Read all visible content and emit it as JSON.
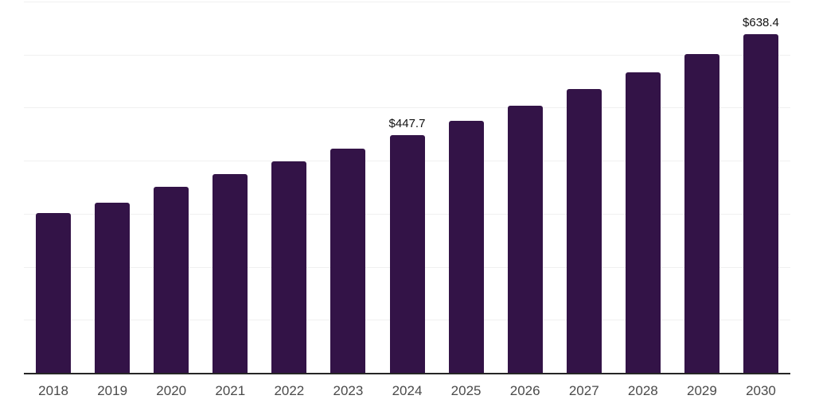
{
  "chart_data": {
    "type": "bar",
    "title": "",
    "xlabel": "",
    "ylabel": "",
    "categories": [
      "2018",
      "2019",
      "2020",
      "2021",
      "2022",
      "2023",
      "2024",
      "2025",
      "2026",
      "2027",
      "2028",
      "2029",
      "2030"
    ],
    "values": [
      301.0,
      321.4,
      350.7,
      375.2,
      398.4,
      422.9,
      447.7,
      475.0,
      503.9,
      534.6,
      567.2,
      601.7,
      638.4
    ],
    "data_labels": [
      {
        "category": "2024",
        "text": "$447.7"
      },
      {
        "category": "2030",
        "text": "$638.4"
      }
    ],
    "ylim": [
      0,
      700
    ],
    "gridline_values": [
      100,
      200,
      300,
      400,
      500,
      600,
      700
    ],
    "grid": "horizontal",
    "legend": "none",
    "colors": {
      "bar": "#331347",
      "axis_line": "#262626",
      "gridline": "#f0f0f0",
      "tick_label": "#4a4a4a",
      "data_label": "#111111",
      "background": "#ffffff"
    }
  }
}
